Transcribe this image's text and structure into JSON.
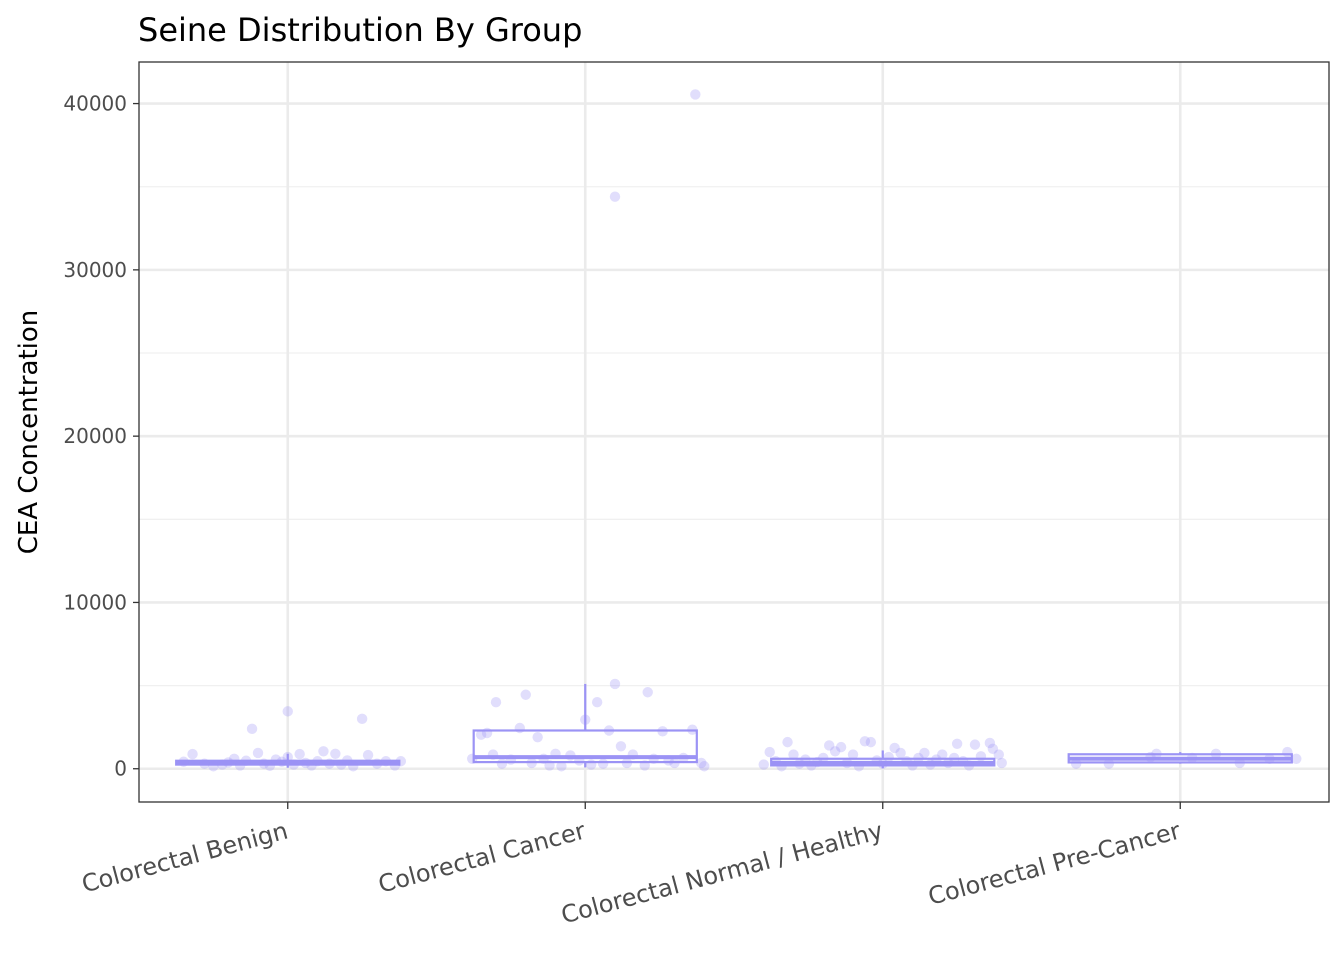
{
  "chart_data": {
    "type": "box",
    "title": "Seine Distribution By Group",
    "xlabel": "",
    "ylabel": "CEA Concentration",
    "ylim": [
      -2000,
      42500
    ],
    "yticks": [
      0,
      10000,
      20000,
      30000,
      40000
    ],
    "ytick_labels": [
      "0",
      "10000",
      "20000",
      "30000",
      "40000"
    ],
    "categories": [
      "Colorectal Benign",
      "Colorectal Cancer",
      "Colorectal Normal / Healthy",
      "Colorectal Pre-Cancer"
    ],
    "grid": true,
    "legend": "none",
    "color": "#9b93f5",
    "boxes": [
      {
        "category": "Colorectal Benign",
        "q1": 250,
        "median": 330,
        "q3": 480,
        "whisker_low": 60,
        "whisker_high": 900
      },
      {
        "category": "Colorectal Cancer",
        "q1": 400,
        "median": 700,
        "q3": 2300,
        "whisker_low": 80,
        "whisker_high": 5100
      },
      {
        "category": "Colorectal Normal / Healthy",
        "q1": 200,
        "median": 350,
        "q3": 600,
        "whisker_low": 30,
        "whisker_high": 1100
      },
      {
        "category": "Colorectal Pre-Cancer",
        "q1": 380,
        "median": 600,
        "q3": 870,
        "whisker_low": 300,
        "whisker_high": 1000
      }
    ],
    "points": [
      {
        "category": "Colorectal Benign",
        "values": [
          {
            "dx": -0.35,
            "y": 420
          },
          {
            "dx": -0.32,
            "y": 880
          },
          {
            "dx": -0.28,
            "y": 300
          },
          {
            "dx": -0.25,
            "y": 150
          },
          {
            "dx": -0.22,
            "y": 250
          },
          {
            "dx": -0.2,
            "y": 380
          },
          {
            "dx": -0.18,
            "y": 600
          },
          {
            "dx": -0.16,
            "y": 200
          },
          {
            "dx": -0.14,
            "y": 480
          },
          {
            "dx": -0.12,
            "y": 2400
          },
          {
            "dx": -0.1,
            "y": 950
          },
          {
            "dx": -0.08,
            "y": 300
          },
          {
            "dx": -0.06,
            "y": 180
          },
          {
            "dx": -0.04,
            "y": 550
          },
          {
            "dx": -0.02,
            "y": 420
          },
          {
            "dx": 0.0,
            "y": 700
          },
          {
            "dx": 0.0,
            "y": 3450
          },
          {
            "dx": 0.02,
            "y": 250
          },
          {
            "dx": 0.04,
            "y": 880
          },
          {
            "dx": 0.06,
            "y": 350
          },
          {
            "dx": 0.08,
            "y": 200
          },
          {
            "dx": 0.1,
            "y": 450
          },
          {
            "dx": 0.12,
            "y": 1050
          },
          {
            "dx": 0.14,
            "y": 300
          },
          {
            "dx": 0.16,
            "y": 900
          },
          {
            "dx": 0.18,
            "y": 250
          },
          {
            "dx": 0.2,
            "y": 500
          },
          {
            "dx": 0.22,
            "y": 150
          },
          {
            "dx": 0.25,
            "y": 3000
          },
          {
            "dx": 0.27,
            "y": 820
          },
          {
            "dx": 0.3,
            "y": 300
          },
          {
            "dx": 0.33,
            "y": 450
          },
          {
            "dx": 0.36,
            "y": 200
          },
          {
            "dx": 0.38,
            "y": 450
          }
        ]
      },
      {
        "category": "Colorectal Cancer",
        "values": [
          {
            "dx": -0.38,
            "y": 600
          },
          {
            "dx": -0.35,
            "y": 2050
          },
          {
            "dx": -0.33,
            "y": 2150
          },
          {
            "dx": -0.31,
            "y": 850
          },
          {
            "dx": -0.3,
            "y": 4000
          },
          {
            "dx": -0.28,
            "y": 300
          },
          {
            "dx": -0.25,
            "y": 550
          },
          {
            "dx": -0.22,
            "y": 2450
          },
          {
            "dx": -0.2,
            "y": 4450
          },
          {
            "dx": -0.18,
            "y": 350
          },
          {
            "dx": -0.16,
            "y": 1900
          },
          {
            "dx": -0.14,
            "y": 600
          },
          {
            "dx": -0.12,
            "y": 200
          },
          {
            "dx": -0.1,
            "y": 900
          },
          {
            "dx": -0.08,
            "y": 150
          },
          {
            "dx": -0.05,
            "y": 800
          },
          {
            "dx": -0.02,
            "y": 500
          },
          {
            "dx": 0.0,
            "y": 2950
          },
          {
            "dx": 0.02,
            "y": 250
          },
          {
            "dx": 0.04,
            "y": 4000
          },
          {
            "dx": 0.06,
            "y": 300
          },
          {
            "dx": 0.08,
            "y": 2300
          },
          {
            "dx": 0.1,
            "y": 34400
          },
          {
            "dx": 0.1,
            "y": 5100
          },
          {
            "dx": 0.12,
            "y": 1350
          },
          {
            "dx": 0.14,
            "y": 350
          },
          {
            "dx": 0.16,
            "y": 850
          },
          {
            "dx": 0.2,
            "y": 200
          },
          {
            "dx": 0.21,
            "y": 4600
          },
          {
            "dx": 0.23,
            "y": 600
          },
          {
            "dx": 0.26,
            "y": 2250
          },
          {
            "dx": 0.28,
            "y": 500
          },
          {
            "dx": 0.3,
            "y": 350
          },
          {
            "dx": 0.33,
            "y": 650
          },
          {
            "dx": 0.36,
            "y": 2350
          },
          {
            "dx": 0.37,
            "y": 40550
          },
          {
            "dx": 0.39,
            "y": 350
          },
          {
            "dx": 0.4,
            "y": 150
          }
        ]
      },
      {
        "category": "Colorectal Normal / Healthy",
        "values": [
          {
            "dx": -0.4,
            "y": 250
          },
          {
            "dx": -0.38,
            "y": 1000
          },
          {
            "dx": -0.36,
            "y": 450
          },
          {
            "dx": -0.34,
            "y": 150
          },
          {
            "dx": -0.32,
            "y": 1600
          },
          {
            "dx": -0.3,
            "y": 850
          },
          {
            "dx": -0.28,
            "y": 300
          },
          {
            "dx": -0.26,
            "y": 550
          },
          {
            "dx": -0.24,
            "y": 200
          },
          {
            "dx": -0.22,
            "y": 400
          },
          {
            "dx": -0.2,
            "y": 650
          },
          {
            "dx": -0.18,
            "y": 1400
          },
          {
            "dx": -0.16,
            "y": 1050
          },
          {
            "dx": -0.14,
            "y": 1300
          },
          {
            "dx": -0.12,
            "y": 350
          },
          {
            "dx": -0.1,
            "y": 850
          },
          {
            "dx": -0.08,
            "y": 150
          },
          {
            "dx": -0.06,
            "y": 1650
          },
          {
            "dx": -0.04,
            "y": 1600
          },
          {
            "dx": -0.02,
            "y": 500
          },
          {
            "dx": 0.0,
            "y": 300
          },
          {
            "dx": 0.02,
            "y": 700
          },
          {
            "dx": 0.04,
            "y": 1250
          },
          {
            "dx": 0.06,
            "y": 950
          },
          {
            "dx": 0.08,
            "y": 450
          },
          {
            "dx": 0.1,
            "y": 200
          },
          {
            "dx": 0.12,
            "y": 650
          },
          {
            "dx": 0.14,
            "y": 950
          },
          {
            "dx": 0.16,
            "y": 250
          },
          {
            "dx": 0.18,
            "y": 550
          },
          {
            "dx": 0.2,
            "y": 850
          },
          {
            "dx": 0.22,
            "y": 350
          },
          {
            "dx": 0.24,
            "y": 650
          },
          {
            "dx": 0.25,
            "y": 1500
          },
          {
            "dx": 0.27,
            "y": 450
          },
          {
            "dx": 0.29,
            "y": 200
          },
          {
            "dx": 0.31,
            "y": 1450
          },
          {
            "dx": 0.33,
            "y": 750
          },
          {
            "dx": 0.36,
            "y": 1550
          },
          {
            "dx": 0.37,
            "y": 1200
          },
          {
            "dx": 0.39,
            "y": 850
          },
          {
            "dx": 0.4,
            "y": 350
          }
        ]
      },
      {
        "category": "Colorectal Pre-Cancer",
        "values": [
          {
            "dx": -0.35,
            "y": 300
          },
          {
            "dx": -0.24,
            "y": 300
          },
          {
            "dx": -0.1,
            "y": 700
          },
          {
            "dx": -0.08,
            "y": 900
          },
          {
            "dx": 0.04,
            "y": 650
          },
          {
            "dx": 0.12,
            "y": 900
          },
          {
            "dx": 0.2,
            "y": 350
          },
          {
            "dx": 0.3,
            "y": 600
          },
          {
            "dx": 0.36,
            "y": 1000
          },
          {
            "dx": 0.39,
            "y": 600
          }
        ]
      }
    ]
  }
}
